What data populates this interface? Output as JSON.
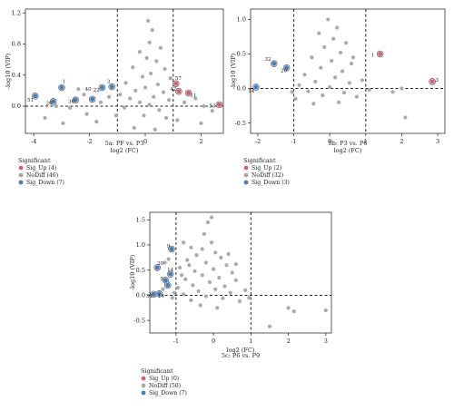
{
  "chart_data": [
    {
      "type": "scatter",
      "caption": "5a: PF vs. P3",
      "xlabel": "log2 (FC)",
      "ylabel": "-log10 (VIP)",
      "xlim": [
        -4.3,
        2.8
      ],
      "ylim": [
        -0.35,
        1.25
      ],
      "xticks": [
        -4,
        -2,
        0,
        2
      ],
      "yticks": [
        0.0,
        0.4,
        0.8,
        1.2
      ],
      "vlines": [
        -1,
        1
      ],
      "hline": 0,
      "legend_title": "Significant",
      "legend": [
        {
          "label": "Sig_Up (4)",
          "color": "#e05a6a"
        },
        {
          "label": "NoDiff (46)",
          "color": "#aaaaaa"
        },
        {
          "label": "Sig_Down (7)",
          "color": "#3d7fc4"
        }
      ],
      "points": [
        {
          "x": -3.95,
          "y": 0.13,
          "g": "down"
        },
        {
          "x": -3.3,
          "y": 0.06,
          "g": "down"
        },
        {
          "x": -3.0,
          "y": 0.24,
          "g": "down"
        },
        {
          "x": -2.5,
          "y": 0.08,
          "g": "down"
        },
        {
          "x": -1.9,
          "y": 0.09,
          "g": "down"
        },
        {
          "x": -1.55,
          "y": 0.24,
          "g": "down"
        },
        {
          "x": -1.2,
          "y": 0.25,
          "g": "down"
        },
        {
          "x": 1.1,
          "y": 0.29,
          "g": "up"
        },
        {
          "x": 1.2,
          "y": 0.19,
          "g": "up"
        },
        {
          "x": 1.55,
          "y": 0.17,
          "g": "up"
        },
        {
          "x": 2.65,
          "y": 0.02,
          "g": "up"
        },
        {
          "x": 0.1,
          "y": 1.1,
          "g": "nd"
        },
        {
          "x": 0.25,
          "y": 0.98,
          "g": "nd"
        },
        {
          "x": 0.15,
          "y": 0.82,
          "g": "nd"
        },
        {
          "x": 0.55,
          "y": 0.75,
          "g": "nd"
        },
        {
          "x": -0.2,
          "y": 0.7,
          "g": "nd"
        },
        {
          "x": 0.05,
          "y": 0.62,
          "g": "nd"
        },
        {
          "x": 0.4,
          "y": 0.58,
          "g": "nd"
        },
        {
          "x": -0.45,
          "y": 0.5,
          "g": "nd"
        },
        {
          "x": 0.7,
          "y": 0.48,
          "g": "nd"
        },
        {
          "x": 0.2,
          "y": 0.42,
          "g": "nd"
        },
        {
          "x": -0.1,
          "y": 0.38,
          "g": "nd"
        },
        {
          "x": 0.9,
          "y": 0.36,
          "g": "nd"
        },
        {
          "x": -0.7,
          "y": 0.3,
          "g": "nd"
        },
        {
          "x": 0.45,
          "y": 0.28,
          "g": "nd"
        },
        {
          "x": 0.0,
          "y": 0.24,
          "g": "nd"
        },
        {
          "x": -0.35,
          "y": 0.2,
          "g": "nd"
        },
        {
          "x": 0.65,
          "y": 0.18,
          "g": "nd"
        },
        {
          "x": -0.9,
          "y": 0.15,
          "g": "nd"
        },
        {
          "x": 0.3,
          "y": 0.12,
          "g": "nd"
        },
        {
          "x": -0.55,
          "y": 0.1,
          "g": "nd"
        },
        {
          "x": 0.85,
          "y": 0.08,
          "g": "nd"
        },
        {
          "x": -0.2,
          "y": 0.05,
          "g": "nd"
        },
        {
          "x": 0.15,
          "y": 0.02,
          "g": "nd"
        },
        {
          "x": -0.75,
          "y": -0.02,
          "g": "nd"
        },
        {
          "x": 0.5,
          "y": -0.05,
          "g": "nd"
        },
        {
          "x": -1.3,
          "y": 0.12,
          "g": "nd"
        },
        {
          "x": -1.6,
          "y": 0.05,
          "g": "nd"
        },
        {
          "x": -2.2,
          "y": 0.15,
          "g": "nd"
        },
        {
          "x": -2.7,
          "y": -0.02,
          "g": "nd"
        },
        {
          "x": -3.6,
          "y": -0.15,
          "g": "nd"
        },
        {
          "x": -2.95,
          "y": -0.22,
          "g": "nd"
        },
        {
          "x": -2.1,
          "y": -0.1,
          "g": "nd"
        },
        {
          "x": -1.75,
          "y": -0.2,
          "g": "nd"
        },
        {
          "x": -1.05,
          "y": -0.12,
          "g": "nd"
        },
        {
          "x": -0.4,
          "y": -0.28,
          "g": "nd"
        },
        {
          "x": 0.35,
          "y": -0.3,
          "g": "nd"
        },
        {
          "x": 1.4,
          "y": 0.05,
          "g": "nd"
        },
        {
          "x": 1.8,
          "y": 0.1,
          "g": "nd"
        },
        {
          "x": 2.1,
          "y": 0.0,
          "g": "nd"
        },
        {
          "x": 2.4,
          "y": -0.06,
          "g": "nd"
        },
        {
          "x": 1.15,
          "y": -0.18,
          "g": "nd"
        },
        {
          "x": 2.0,
          "y": -0.22,
          "g": "nd"
        },
        {
          "x": -0.05,
          "y": -0.12,
          "g": "nd"
        },
        {
          "x": 0.75,
          "y": -0.15,
          "g": "nd"
        },
        {
          "x": -3.2,
          "y": 0.0,
          "g": "nd"
        },
        {
          "x": -2.4,
          "y": 0.22,
          "g": "nd"
        }
      ],
      "labels": [
        {
          "text": "51",
          "x": -4.12,
          "y": 0.06
        },
        {
          "text": "26",
          "x": -3.45,
          "y": 0.02
        },
        {
          "text": "1",
          "x": -2.92,
          "y": 0.3
        },
        {
          "text": "36",
          "x": -2.65,
          "y": 0.04
        },
        {
          "text": "40",
          "x": -2.05,
          "y": 0.2
        },
        {
          "text": "22",
          "x": -1.75,
          "y": 0.19
        },
        {
          "text": "3",
          "x": -1.32,
          "y": 0.3
        },
        {
          "text": "57",
          "x": 1.18,
          "y": 0.34
        },
        {
          "text": "42",
          "x": 1.0,
          "y": 0.2
        },
        {
          "text": "11",
          "x": 1.72,
          "y": 0.12
        },
        {
          "text": "53",
          "x": 2.4,
          "y": -0.02
        }
      ]
    },
    {
      "type": "scatter",
      "caption": "5b: P3 vs. P6",
      "xlabel": "log2 (FC)",
      "ylabel": "-log10 (VIP)",
      "xlim": [
        -2.2,
        3.2
      ],
      "ylim": [
        -0.65,
        1.15
      ],
      "xticks": [
        -2,
        -1,
        0,
        1,
        2,
        3
      ],
      "yticks": [
        -0.5,
        0.0,
        0.5,
        1.0
      ],
      "vlines": [
        -1,
        1
      ],
      "hline": 0,
      "legend_title": "Significant",
      "legend": [
        {
          "label": "Sig_Up (2)",
          "color": "#e05a6a"
        },
        {
          "label": "NoDiff (32)",
          "color": "#aaaaaa"
        },
        {
          "label": "Sig_Down (3)",
          "color": "#3d7fc4"
        }
      ],
      "points": [
        {
          "x": -2.05,
          "y": 0.02,
          "g": "down"
        },
        {
          "x": -1.55,
          "y": 0.36,
          "g": "down"
        },
        {
          "x": -1.2,
          "y": 0.3,
          "g": "down"
        },
        {
          "x": 1.4,
          "y": 0.5,
          "g": "up"
        },
        {
          "x": 2.85,
          "y": 0.1,
          "g": "up"
        },
        {
          "x": -0.05,
          "y": 1.0,
          "g": "nd"
        },
        {
          "x": 0.2,
          "y": 0.88,
          "g": "nd"
        },
        {
          "x": -0.3,
          "y": 0.8,
          "g": "nd"
        },
        {
          "x": 0.1,
          "y": 0.72,
          "g": "nd"
        },
        {
          "x": 0.45,
          "y": 0.66,
          "g": "nd"
        },
        {
          "x": -0.15,
          "y": 0.6,
          "g": "nd"
        },
        {
          "x": 0.3,
          "y": 0.52,
          "g": "nd"
        },
        {
          "x": -0.5,
          "y": 0.45,
          "g": "nd"
        },
        {
          "x": 0.05,
          "y": 0.4,
          "g": "nd"
        },
        {
          "x": 0.6,
          "y": 0.36,
          "g": "nd"
        },
        {
          "x": -0.25,
          "y": 0.3,
          "g": "nd"
        },
        {
          "x": 0.35,
          "y": 0.25,
          "g": "nd"
        },
        {
          "x": -0.7,
          "y": 0.2,
          "g": "nd"
        },
        {
          "x": 0.15,
          "y": 0.16,
          "g": "nd"
        },
        {
          "x": -0.4,
          "y": 0.1,
          "g": "nd"
        },
        {
          "x": 0.55,
          "y": 0.08,
          "g": "nd"
        },
        {
          "x": -0.85,
          "y": 0.05,
          "g": "nd"
        },
        {
          "x": 0.0,
          "y": 0.02,
          "g": "nd"
        },
        {
          "x": -0.6,
          "y": -0.04,
          "g": "nd"
        },
        {
          "x": 0.4,
          "y": -0.06,
          "g": "nd"
        },
        {
          "x": -0.2,
          "y": -0.1,
          "g": "nd"
        },
        {
          "x": 0.75,
          "y": -0.12,
          "g": "nd"
        },
        {
          "x": -1.05,
          "y": -0.05,
          "g": "nd"
        },
        {
          "x": -0.95,
          "y": -0.15,
          "g": "nd"
        },
        {
          "x": 0.9,
          "y": 0.12,
          "g": "nd"
        },
        {
          "x": 1.1,
          "y": -0.02,
          "g": "nd"
        },
        {
          "x": 1.75,
          "y": -0.05,
          "g": "nd"
        },
        {
          "x": 2.0,
          "y": 0.0,
          "g": "nd"
        },
        {
          "x": 2.1,
          "y": -0.42,
          "g": "nd"
        },
        {
          "x": 0.25,
          "y": -0.2,
          "g": "nd"
        },
        {
          "x": -0.45,
          "y": -0.22,
          "g": "nd"
        },
        {
          "x": 0.65,
          "y": 0.45,
          "g": "nd"
        }
      ],
      "labels": [
        {
          "text": "14",
          "x": -2.18,
          "y": -0.06
        },
        {
          "text": "32",
          "x": -1.72,
          "y": 0.4
        },
        {
          "text": "20",
          "x": -1.28,
          "y": 0.24
        },
        {
          "text": "1",
          "x": 1.2,
          "y": 0.46
        },
        {
          "text": "3",
          "x": 2.98,
          "y": 0.1
        }
      ]
    },
    {
      "type": "scatter",
      "caption": "5c: P6 vs. P9",
      "xlabel": "log2 (FC)",
      "ylabel": "-log10 (VIP)",
      "xlim": [
        -1.7,
        3.15
      ],
      "ylim": [
        -0.75,
        1.65
      ],
      "xticks": [
        -1,
        0,
        1,
        2,
        3
      ],
      "yticks": [
        -0.5,
        0.0,
        0.5,
        1.0,
        1.5
      ],
      "vlines": [
        -1,
        1
      ],
      "hline": 0,
      "legend_title": "Significant",
      "legend": [
        {
          "label": "Sig_Up (0)",
          "color": "#e05a6a"
        },
        {
          "label": "NoDiff (50)",
          "color": "#aaaaaa"
        },
        {
          "label": "Sig_Down (7)",
          "color": "#3d7fc4"
        }
      ],
      "points": [
        {
          "x": -1.6,
          "y": 0.02,
          "g": "down"
        },
        {
          "x": -1.45,
          "y": 0.03,
          "g": "down"
        },
        {
          "x": -1.5,
          "y": 0.55,
          "g": "down"
        },
        {
          "x": -1.28,
          "y": 0.3,
          "g": "down"
        },
        {
          "x": -1.22,
          "y": 0.2,
          "g": "down"
        },
        {
          "x": -1.15,
          "y": 0.42,
          "g": "down"
        },
        {
          "x": -1.12,
          "y": 0.92,
          "g": "down"
        },
        {
          "x": -0.05,
          "y": 1.55,
          "g": "nd"
        },
        {
          "x": -0.15,
          "y": 1.45,
          "g": "nd"
        },
        {
          "x": -0.8,
          "y": 1.05,
          "g": "nd"
        },
        {
          "x": -0.6,
          "y": 0.95,
          "g": "nd"
        },
        {
          "x": -0.3,
          "y": 0.92,
          "g": "nd"
        },
        {
          "x": 0.05,
          "y": 0.85,
          "g": "nd"
        },
        {
          "x": -0.45,
          "y": 0.8,
          "g": "nd"
        },
        {
          "x": 0.2,
          "y": 0.75,
          "g": "nd"
        },
        {
          "x": -0.7,
          "y": 0.7,
          "g": "nd"
        },
        {
          "x": -0.2,
          "y": 0.65,
          "g": "nd"
        },
        {
          "x": 0.35,
          "y": 0.6,
          "g": "nd"
        },
        {
          "x": -0.9,
          "y": 0.55,
          "g": "nd"
        },
        {
          "x": 0.0,
          "y": 0.52,
          "g": "nd"
        },
        {
          "x": -0.5,
          "y": 0.48,
          "g": "nd"
        },
        {
          "x": 0.5,
          "y": 0.45,
          "g": "nd"
        },
        {
          "x": -0.3,
          "y": 0.4,
          "g": "nd"
        },
        {
          "x": 0.15,
          "y": 0.35,
          "g": "nd"
        },
        {
          "x": -0.75,
          "y": 0.32,
          "g": "nd"
        },
        {
          "x": 0.6,
          "y": 0.3,
          "g": "nd"
        },
        {
          "x": -0.1,
          "y": 0.26,
          "g": "nd"
        },
        {
          "x": -0.55,
          "y": 0.2,
          "g": "nd"
        },
        {
          "x": 0.3,
          "y": 0.18,
          "g": "nd"
        },
        {
          "x": -0.95,
          "y": 0.15,
          "g": "nd"
        },
        {
          "x": 0.05,
          "y": 0.12,
          "g": "nd"
        },
        {
          "x": -0.4,
          "y": 0.08,
          "g": "nd"
        },
        {
          "x": 0.45,
          "y": 0.05,
          "g": "nd"
        },
        {
          "x": -0.8,
          "y": 0.02,
          "g": "nd"
        },
        {
          "x": -0.2,
          "y": -0.02,
          "g": "nd"
        },
        {
          "x": 0.25,
          "y": -0.06,
          "g": "nd"
        },
        {
          "x": -0.6,
          "y": -0.1,
          "g": "nd"
        },
        {
          "x": 0.7,
          "y": -0.12,
          "g": "nd"
        },
        {
          "x": -1.05,
          "y": 0.05,
          "g": "nd"
        },
        {
          "x": -1.3,
          "y": 0.65,
          "g": "nd"
        },
        {
          "x": -1.35,
          "y": 0.12,
          "g": "nd"
        },
        {
          "x": 0.85,
          "y": 0.1,
          "g": "nd"
        },
        {
          "x": 0.95,
          "y": -0.05,
          "g": "nd"
        },
        {
          "x": -0.35,
          "y": -0.2,
          "g": "nd"
        },
        {
          "x": 0.1,
          "y": -0.25,
          "g": "nd"
        },
        {
          "x": 1.5,
          "y": -0.62,
          "g": "nd"
        },
        {
          "x": 2.0,
          "y": -0.25,
          "g": "nd"
        },
        {
          "x": 2.15,
          "y": -0.32,
          "g": "nd"
        },
        {
          "x": 3.0,
          "y": -0.3,
          "g": "nd"
        },
        {
          "x": -0.65,
          "y": 0.6,
          "g": "nd"
        },
        {
          "x": 0.4,
          "y": 0.82,
          "g": "nd"
        },
        {
          "x": -0.05,
          "y": 1.05,
          "g": "nd"
        },
        {
          "x": -0.25,
          "y": 1.22,
          "g": "nd"
        },
        {
          "x": 0.6,
          "y": 0.62,
          "g": "nd"
        },
        {
          "x": -0.85,
          "y": 0.4,
          "g": "nd"
        },
        {
          "x": -1.1,
          "y": -0.05,
          "g": "nd"
        },
        {
          "x": -1.2,
          "y": 0.72,
          "g": "nd"
        }
      ],
      "labels": [
        {
          "text": "38",
          "x": -1.72,
          "y": -0.05
        },
        {
          "text": "14",
          "x": -1.4,
          "y": -0.05
        },
        {
          "text": "20",
          "x": -1.42,
          "y": 0.6
        },
        {
          "text": "5",
          "x": -1.38,
          "y": 0.3
        },
        {
          "text": "14",
          "x": -1.15,
          "y": 0.48
        },
        {
          "text": "9",
          "x": -1.2,
          "y": 0.95
        }
      ]
    }
  ]
}
